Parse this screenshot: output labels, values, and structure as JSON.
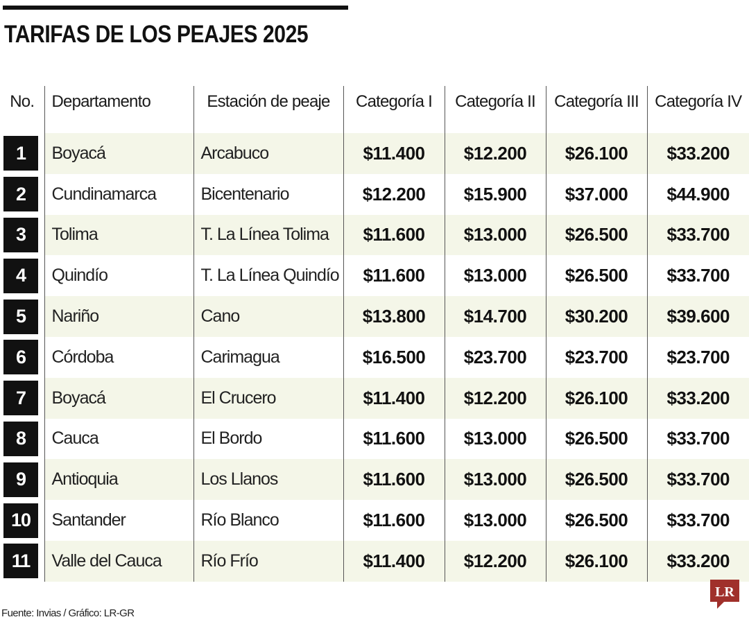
{
  "title": "TARIFAS DE LOS PEAJES 2025",
  "columns": [
    "No.",
    "Departamento",
    "Estación de peaje",
    "Categoría I",
    "Categoría II",
    "Categoría III",
    "Categoría IV"
  ],
  "rows": [
    {
      "no": "1",
      "departamento": "Boyacá",
      "estacion": "Arcabuco",
      "cat1": "$11.400",
      "cat2": "$12.200",
      "cat3": "$26.100",
      "cat4": "$33.200"
    },
    {
      "no": "2",
      "departamento": "Cundinamarca",
      "estacion": "Bicentenario",
      "cat1": "$12.200",
      "cat2": "$15.900",
      "cat3": "$37.000",
      "cat4": "$44.900"
    },
    {
      "no": "3",
      "departamento": "Tolima",
      "estacion": "T. La Línea Tolima",
      "cat1": "$11.600",
      "cat2": "$13.000",
      "cat3": "$26.500",
      "cat4": "$33.700"
    },
    {
      "no": "4",
      "departamento": "Quindío",
      "estacion": "T. La Línea Quindío",
      "cat1": "$11.600",
      "cat2": "$13.000",
      "cat3": "$26.500",
      "cat4": "$33.700"
    },
    {
      "no": "5",
      "departamento": "Nariño",
      "estacion": "Cano",
      "cat1": "$13.800",
      "cat2": "$14.700",
      "cat3": "$30.200",
      "cat4": "$39.600"
    },
    {
      "no": "6",
      "departamento": "Córdoba",
      "estacion": "Carimagua",
      "cat1": "$16.500",
      "cat2": "$23.700",
      "cat3": "$23.700",
      "cat4": "$23.700"
    },
    {
      "no": "7",
      "departamento": "Boyacá",
      "estacion": "El Crucero",
      "cat1": "$11.400",
      "cat2": "$12.200",
      "cat3": "$26.100",
      "cat4": "$33.200"
    },
    {
      "no": "8",
      "departamento": "Cauca",
      "estacion": "El Bordo",
      "cat1": "$11.600",
      "cat2": "$13.000",
      "cat3": "$26.500",
      "cat4": "$33.700"
    },
    {
      "no": "9",
      "departamento": "Antioquia",
      "estacion": "Los Llanos",
      "cat1": "$11.600",
      "cat2": "$13.000",
      "cat3": "$26.500",
      "cat4": "$33.700"
    },
    {
      "no": "10",
      "departamento": "Santander",
      "estacion": "Río Blanco",
      "cat1": "$11.600",
      "cat2": "$13.000",
      "cat3": "$26.500",
      "cat4": "$33.700"
    },
    {
      "no": "11",
      "departamento": "Valle del Cauca",
      "estacion": "Río Frío",
      "cat1": "$11.400",
      "cat2": "$12.200",
      "cat3": "$26.100",
      "cat4": "$33.200"
    }
  ],
  "source": "Fuente: Invias / Gráfico: LR-GR",
  "logo": {
    "text": "LR",
    "color": "#a0302b",
    "icon": "lr-logo-icon"
  },
  "colors": {
    "row_band": "#f4f6e8",
    "number_box": "#111111"
  },
  "chart_data": {
    "type": "table",
    "title": "TARIFAS DE LOS PEAJES 2025",
    "columns": [
      "No.",
      "Departamento",
      "Estación de peaje",
      "Categoría I",
      "Categoría II",
      "Categoría III",
      "Categoría IV"
    ],
    "rows": [
      [
        "1",
        "Boyacá",
        "Arcabuco",
        "$11.400",
        "$12.200",
        "$26.100",
        "$33.200"
      ],
      [
        "2",
        "Cundinamarca",
        "Bicentenario",
        "$12.200",
        "$15.900",
        "$37.000",
        "$44.900"
      ],
      [
        "3",
        "Tolima",
        "T. La Línea Tolima",
        "$11.600",
        "$13.000",
        "$26.500",
        "$33.700"
      ],
      [
        "4",
        "Quindío",
        "T. La Línea Quindío",
        "$11.600",
        "$13.000",
        "$26.500",
        "$33.700"
      ],
      [
        "5",
        "Nariño",
        "Cano",
        "$13.800",
        "$14.700",
        "$30.200",
        "$39.600"
      ],
      [
        "6",
        "Córdoba",
        "Carimagua",
        "$16.500",
        "$23.700",
        "$23.700",
        "$23.700"
      ],
      [
        "7",
        "Boyacá",
        "El Crucero",
        "$11.400",
        "$12.200",
        "$26.100",
        "$33.200"
      ],
      [
        "8",
        "Cauca",
        "El Bordo",
        "$11.600",
        "$13.000",
        "$26.500",
        "$33.700"
      ],
      [
        "9",
        "Antioquia",
        "Los Llanos",
        "$11.600",
        "$13.000",
        "$26.500",
        "$33.700"
      ],
      [
        "10",
        "Santander",
        "Río Blanco",
        "$11.600",
        "$13.000",
        "$26.500",
        "$33.700"
      ],
      [
        "11",
        "Valle del Cauca",
        "Río Frío",
        "$11.400",
        "$12.200",
        "$26.100",
        "$33.200"
      ]
    ]
  }
}
